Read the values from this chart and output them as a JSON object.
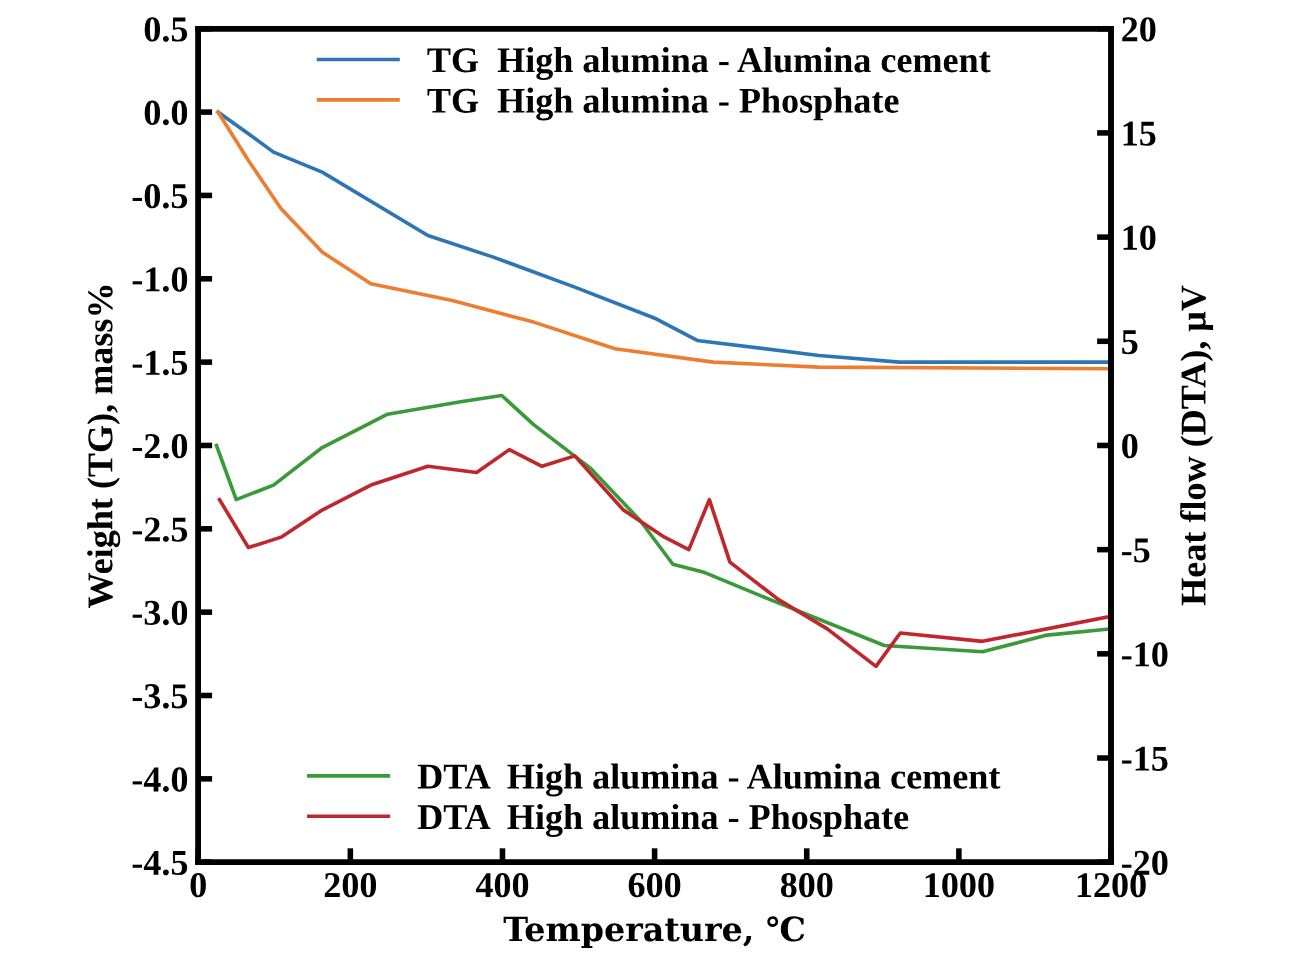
{
  "chart_data": {
    "type": "line",
    "xlabel": "Temperature, ℃",
    "ylabel": "Weight (TG), mass%",
    "y2label": "Heat flow (DTA), μV",
    "xlim": [
      0,
      1200
    ],
    "xticks": [
      0,
      200,
      400,
      600,
      800,
      1000,
      1200
    ],
    "ylim": [
      -4.5,
      0.5
    ],
    "yticks": [
      -4.5,
      {
        "value": -4,
        "label": "-4.0"
      },
      -3.5,
      {
        "value": -3,
        "label": "-3.0"
      },
      -2.5,
      {
        "value": -2,
        "label": "-2.0"
      },
      -1.5,
      {
        "value": -1,
        "label": "-1.0"
      },
      -0.5,
      {
        "value": 0,
        "label": "0.0"
      },
      0.5
    ],
    "y2lim": [
      -20,
      20
    ],
    "y2ticks": [
      -20,
      -15,
      -10,
      -5,
      0,
      5,
      10,
      15,
      20
    ],
    "grid": false,
    "legend": "top",
    "line_style": "solid",
    "series": [
      {
        "name": "TG  High alumina - Alumina cement",
        "color": "#2e75b6",
        "x": [
          26,
          66,
          99,
          163,
          302,
          388,
          495,
          602,
          656,
          816,
          922,
          1200
        ],
        "values": [
          0.0,
          -0.13,
          -0.24,
          -0.36,
          -0.74,
          -0.87,
          -1.05,
          -1.24,
          -1.37,
          -1.46,
          -1.5,
          -1.5
        ]
      },
      {
        "name": "TG  High alumina - Phosphate",
        "color": "#ed7d31",
        "x": [
          26,
          66,
          109,
          163,
          227,
          334,
          441,
          548,
          677,
          816,
          1200
        ],
        "values": [
          0.0,
          -0.29,
          -0.58,
          -0.84,
          -1.03,
          -1.13,
          -1.26,
          -1.42,
          -1.5,
          -1.53,
          -1.54
        ]
      },
      {
        "name": "DTA  High alumina - Alumina cement",
        "color": "#3a9a3a",
        "axis": "y2",
        "x": [
          24,
          50,
          99,
          163,
          249,
          345,
          399,
          441,
          516,
          581,
          624,
          666,
          752,
          902,
          1031,
          1116,
          1200
        ],
        "values": [
          0,
          -2.6,
          -1.9,
          -0.1,
          1.5,
          2.1,
          2.4,
          1.0,
          -1.1,
          -3.6,
          -5.7,
          -6.1,
          -7.4,
          -9.6,
          -9.9,
          -9.1,
          -8.8
        ]
      },
      {
        "name": "DTA  High alumina - Phosphate",
        "color": "#c0272d",
        "axis": "y2",
        "x": [
          28,
          66,
          109,
          163,
          227,
          302,
          366,
          409,
          452,
          495,
          559,
          613,
          645,
          672,
          699,
          763,
          827,
          891,
          923,
          1031,
          1200
        ],
        "values": [
          -2.6,
          -4.9,
          -4.4,
          -3.1,
          -1.9,
          -1.0,
          -1.3,
          -0.2,
          -1.0,
          -0.5,
          -3.1,
          -4.4,
          -5.0,
          -2.6,
          -5.6,
          -7.4,
          -8.8,
          -10.6,
          -9.0,
          -9.4,
          -8.2
        ]
      }
    ]
  }
}
